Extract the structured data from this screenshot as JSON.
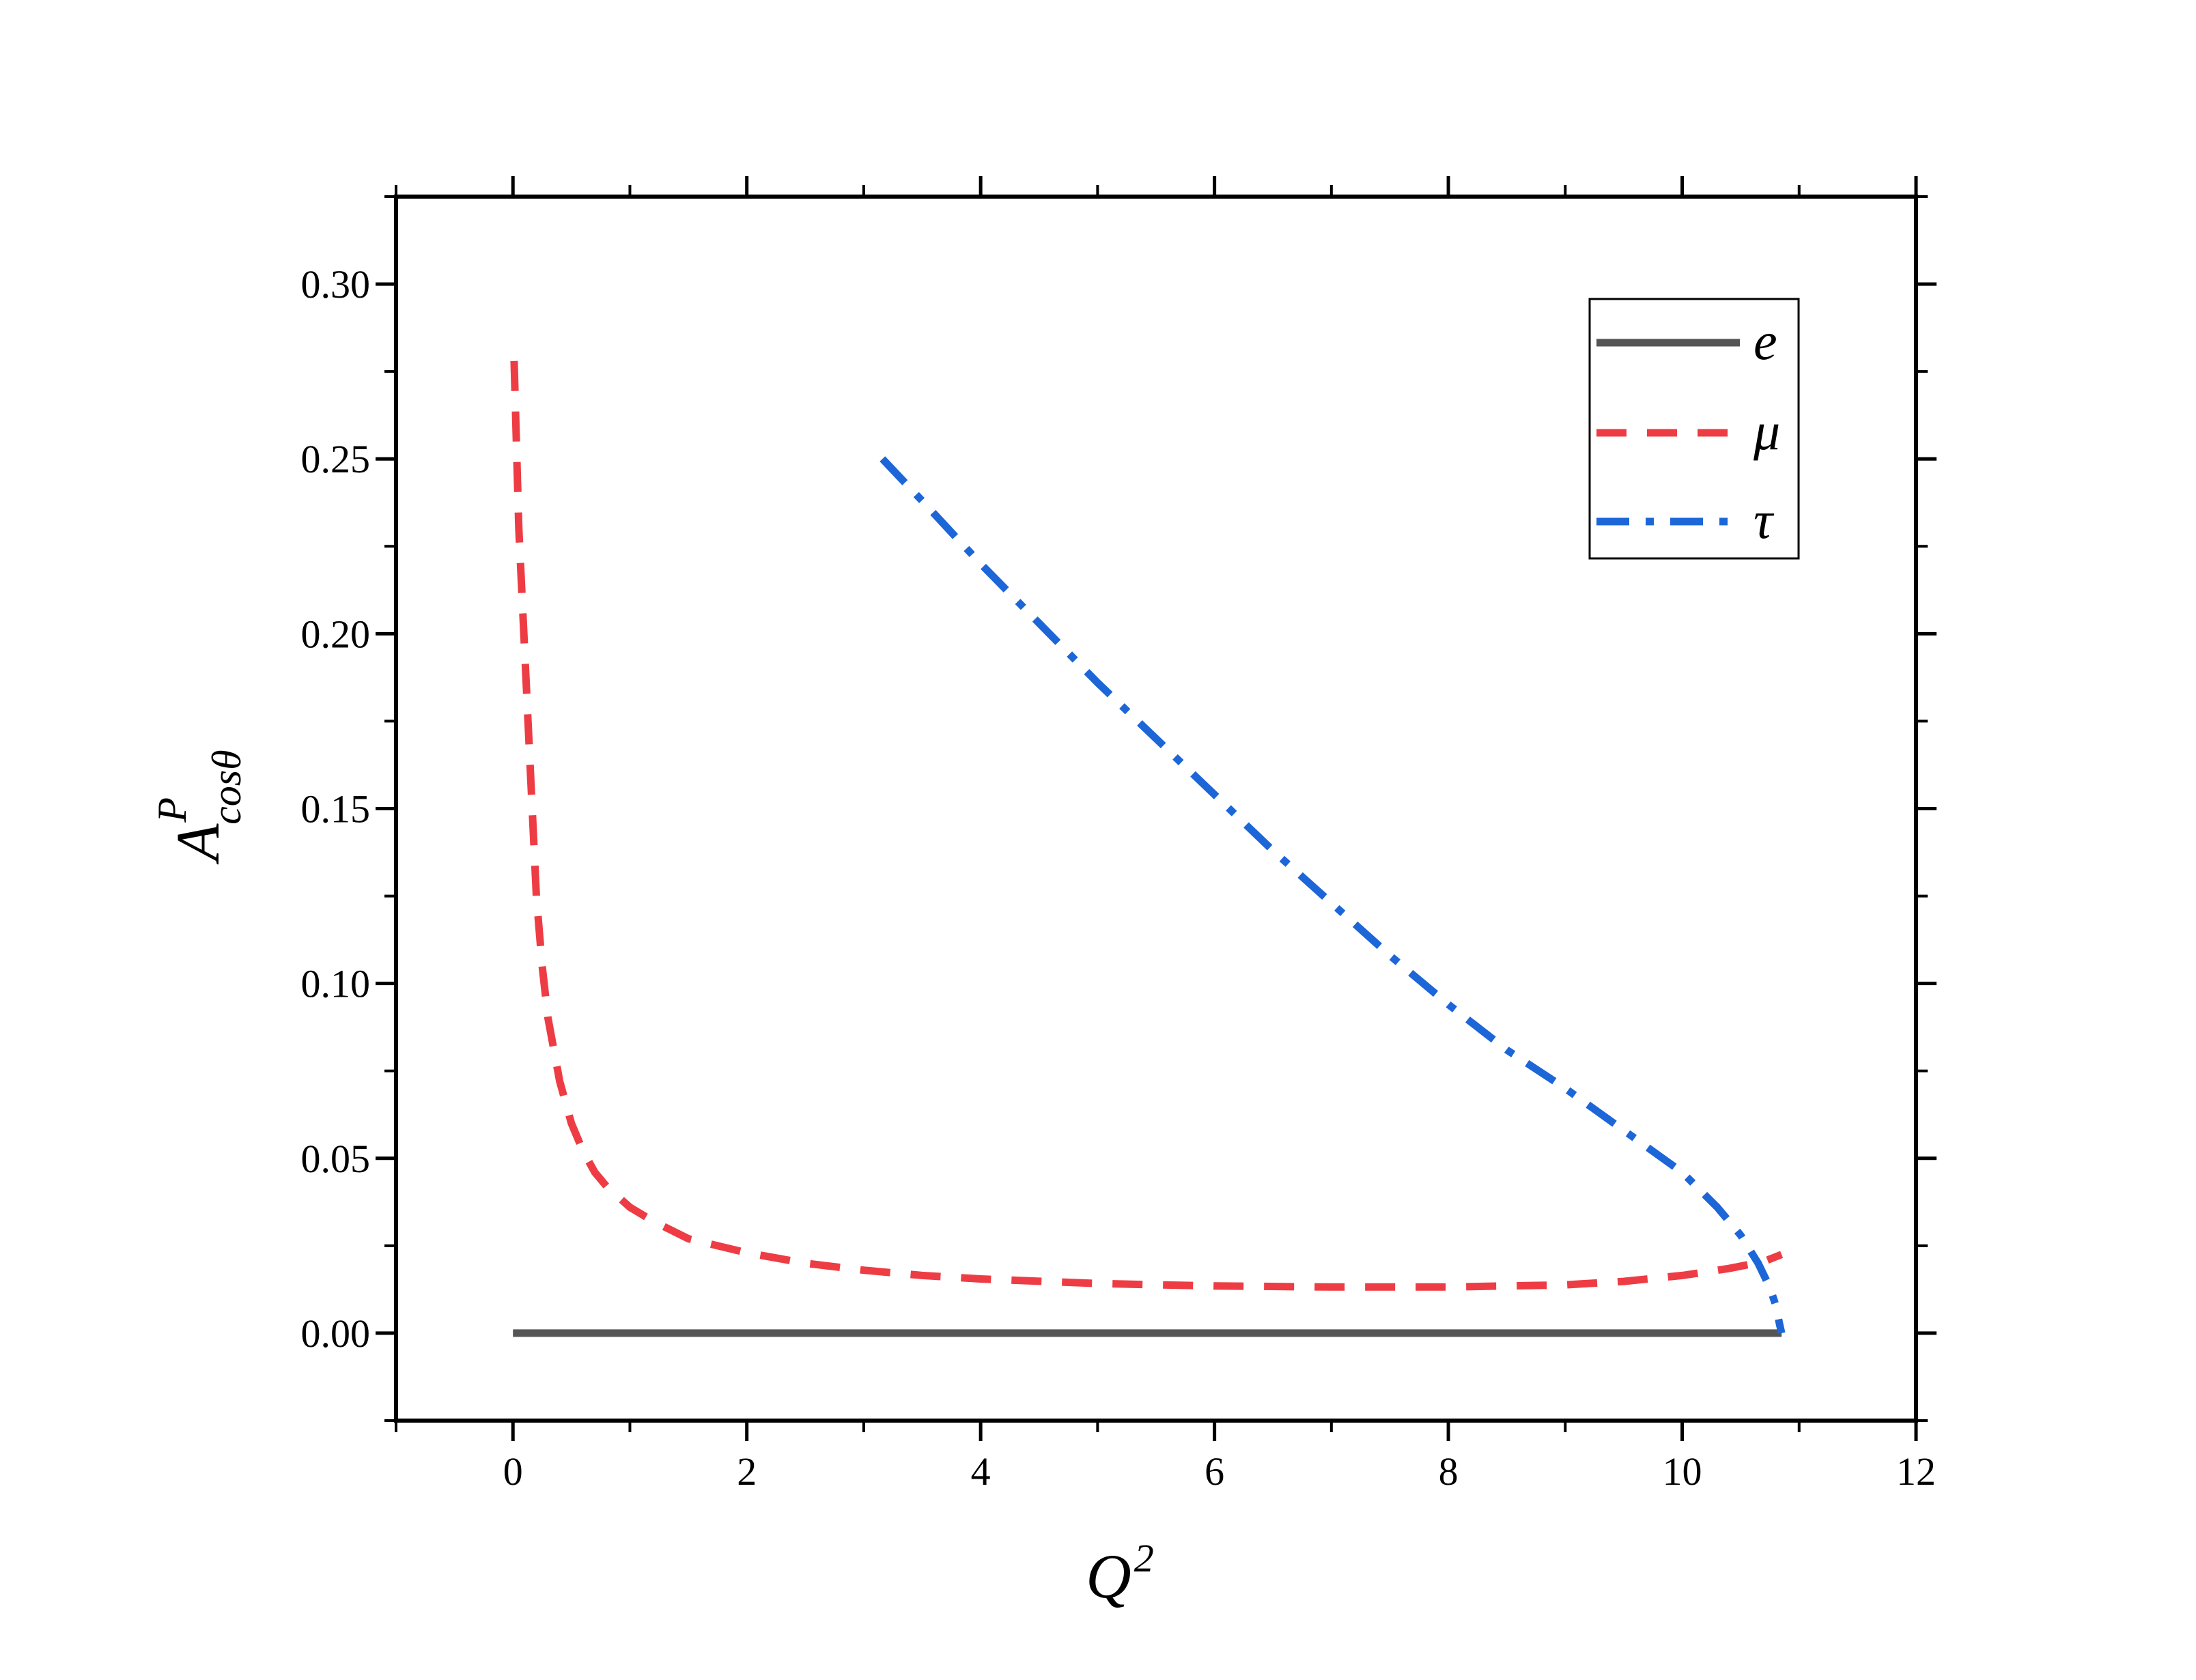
{
  "chart_data": {
    "type": "line",
    "title": "",
    "xlabel": {
      "base": "Q",
      "sup": "2"
    },
    "ylabel": {
      "base": "A",
      "sup": "P",
      "sub": "cosθ"
    },
    "xlim": [
      -1,
      12
    ],
    "ylim": [
      -0.025,
      0.325
    ],
    "x_ticks": [
      0,
      2,
      4,
      6,
      8,
      10,
      12
    ],
    "x_tick_labels": [
      "0",
      "2",
      "4",
      "6",
      "8",
      "10",
      "12"
    ],
    "y_ticks": [
      0.0,
      0.05,
      0.1,
      0.15,
      0.2,
      0.25,
      0.3
    ],
    "y_tick_labels": [
      "0.00",
      "0.05",
      "0.10",
      "0.15",
      "0.20",
      "0.25",
      "0.30"
    ],
    "grid": false,
    "legend_position": "top-right",
    "series": [
      {
        "name": "e",
        "color": "#555555",
        "style": "solid",
        "x": [
          0.0,
          10.85
        ],
        "y": [
          0.0,
          0.0
        ]
      },
      {
        "name": "μ",
        "color": "#ee3c44",
        "style": "dashed",
        "x": [
          0.01,
          0.05,
          0.1,
          0.15,
          0.2,
          0.25,
          0.3,
          0.4,
          0.5,
          0.6,
          0.7,
          0.8,
          1.0,
          1.2,
          1.5,
          2.0,
          2.5,
          3.0,
          3.5,
          4.0,
          5.0,
          6.0,
          7.0,
          8.0,
          9.0,
          9.5,
          10.0,
          10.4,
          10.7,
          10.85
        ],
        "y": [
          0.278,
          0.23,
          0.195,
          0.16,
          0.125,
          0.105,
          0.09,
          0.072,
          0.06,
          0.052,
          0.046,
          0.042,
          0.036,
          0.032,
          0.027,
          0.023,
          0.02,
          0.018,
          0.0165,
          0.0155,
          0.0142,
          0.0135,
          0.0132,
          0.0132,
          0.0138,
          0.0148,
          0.0165,
          0.0185,
          0.0205,
          0.0225
        ]
      },
      {
        "name": "τ",
        "color": "#1c66d8",
        "style": "dashdot",
        "x": [
          3.16,
          3.5,
          4.0,
          4.5,
          5.0,
          5.5,
          6.0,
          6.5,
          7.0,
          7.5,
          8.0,
          8.5,
          9.0,
          9.5,
          10.0,
          10.3,
          10.5,
          10.65,
          10.75,
          10.8,
          10.83,
          10.85
        ],
        "y": [
          0.25,
          0.238,
          0.22,
          0.203,
          0.186,
          0.17,
          0.154,
          0.138,
          0.123,
          0.108,
          0.094,
          0.081,
          0.07,
          0.058,
          0.046,
          0.036,
          0.028,
          0.02,
          0.013,
          0.008,
          0.003,
          0.0
        ]
      }
    ]
  }
}
